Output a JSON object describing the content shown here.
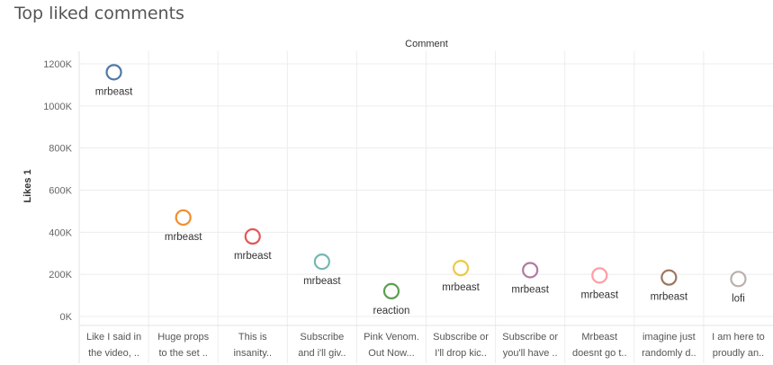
{
  "title": "Top liked comments",
  "chart_data": {
    "type": "scatter",
    "column_header": "Comment",
    "ylabel": "Likes 1",
    "ylim": [
      0,
      1200000
    ],
    "yticks": [
      0,
      200000,
      400000,
      600000,
      800000,
      1000000,
      1200000
    ],
    "ytick_labels": [
      "0K",
      "200K",
      "400K",
      "600K",
      "800K",
      "1000K",
      "1200K"
    ],
    "grid": true,
    "categories": [
      [
        "Like I said in",
        "the video, .."
      ],
      [
        "Huge props",
        "to the set .."
      ],
      [
        "This is",
        "insanity.."
      ],
      [
        "Subscribe",
        "and i'll giv.."
      ],
      [
        "Pink Venom.",
        "Out Now..."
      ],
      [
        "Subscribe or",
        "I'll drop kic.."
      ],
      [
        "Subscribe or",
        "you'll have .."
      ],
      [
        "Mrbeast",
        "doesnt go t.."
      ],
      [
        "imagine just",
        "randomly d.."
      ],
      [
        "I am here to",
        "proudly an.."
      ]
    ],
    "values": [
      1160000,
      470000,
      380000,
      260000,
      120000,
      230000,
      220000,
      195000,
      185000,
      178000
    ],
    "point_labels": [
      "mrbeast",
      "mrbeast",
      "mrbeast",
      "mrbeast",
      "reaction",
      "mrbeast",
      "mrbeast",
      "mrbeast",
      "mrbeast",
      "lofi"
    ],
    "colors": [
      "#4e79a7",
      "#f28e2b",
      "#e15759",
      "#76b7b2",
      "#59a14f",
      "#edc948",
      "#b07aa1",
      "#ff9da7",
      "#9c755f",
      "#bab0ac"
    ]
  }
}
